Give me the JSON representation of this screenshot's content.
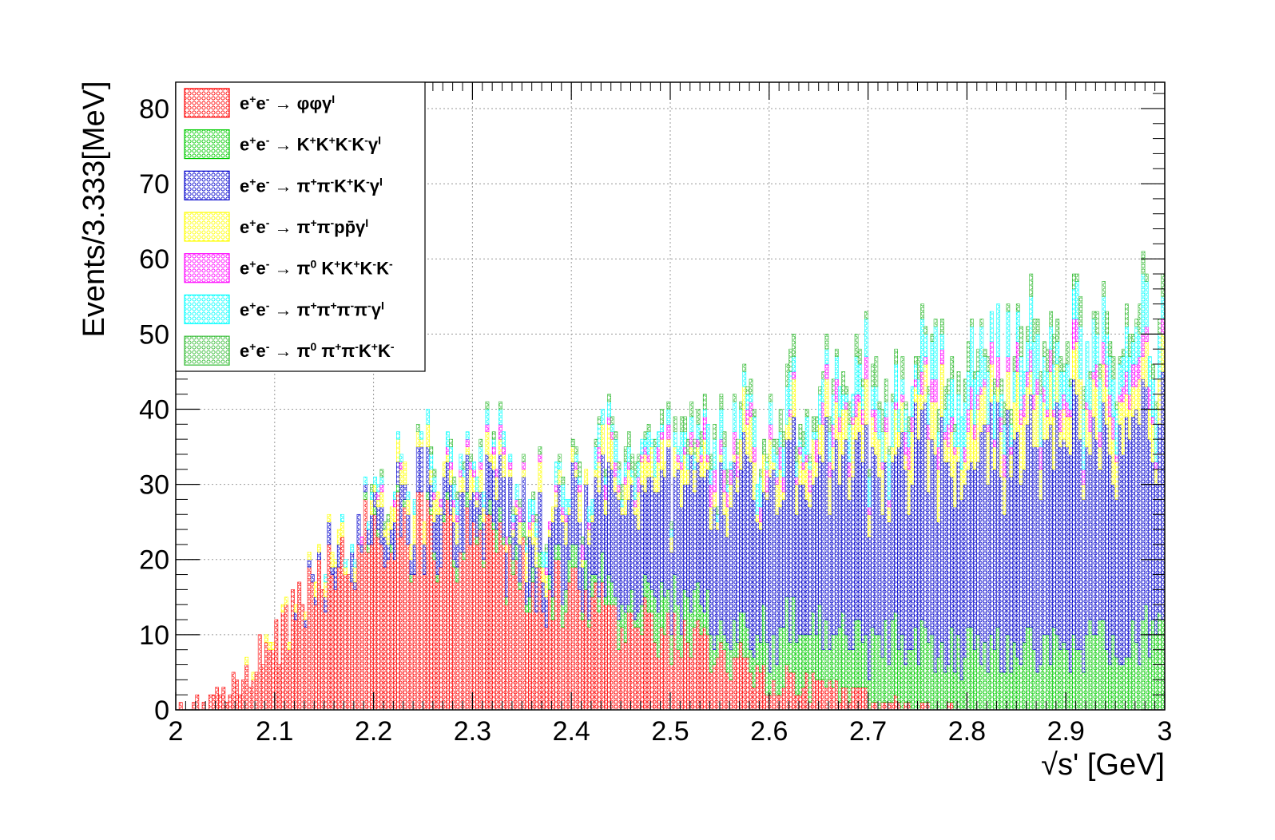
{
  "chart_data": {
    "type": "histogram",
    "stacked": true,
    "xlabel": "√s' [GeV]",
    "ylabel": "Events/3.333[MeV]",
    "xlim": [
      2,
      3
    ],
    "ylim": [
      0,
      83.5
    ],
    "xticks": [
      "2",
      "2.1",
      "2.2",
      "2.3",
      "2.4",
      "2.5",
      "2.6",
      "2.7",
      "2.8",
      "2.9",
      "3"
    ],
    "yticks": [
      "0",
      "10",
      "20",
      "30",
      "40",
      "50",
      "60",
      "70",
      "80"
    ],
    "grid": true,
    "legend_position": "top-left",
    "bin_width_gev": 0.003333,
    "curve_x": [
      2.0,
      2.05,
      2.1,
      2.15,
      2.2,
      2.25,
      2.3,
      2.35,
      2.4,
      2.45,
      2.5,
      2.55,
      2.6,
      2.65,
      2.7,
      2.75,
      2.8,
      2.85,
      2.9,
      2.95,
      3.0
    ],
    "series": [
      {
        "name": "e+e- → φφγ^I",
        "label_parts": [
          [
            "e",
            ""
          ],
          [
            "+",
            "sup"
          ],
          [
            "e",
            ""
          ],
          [
            "-",
            "sup"
          ],
          [
            " → φφγ",
            ""
          ],
          [
            "I",
            "sup"
          ]
        ],
        "color": "#ff0000",
        "profile": [
          0,
          2,
          9,
          19,
          23,
          24,
          22,
          18,
          15,
          12,
          10,
          7,
          4,
          3,
          2,
          0.5,
          0,
          0,
          0,
          0,
          0
        ]
      },
      {
        "name": "e+e- → K+K+K-K-γ^I",
        "label_parts": [
          [
            "e",
            ""
          ],
          [
            "+",
            "sup"
          ],
          [
            "e",
            ""
          ],
          [
            "-",
            "sup"
          ],
          [
            " → K",
            ""
          ],
          [
            "+",
            "sup"
          ],
          [
            "K",
            ""
          ],
          [
            "+",
            "sup"
          ],
          [
            "K",
            ""
          ],
          [
            "-",
            "sup"
          ],
          [
            "K",
            ""
          ],
          [
            "-",
            "sup"
          ],
          [
            "γ",
            ""
          ],
          [
            "I",
            "sup"
          ]
        ],
        "color": "#00cc00",
        "profile": [
          0,
          0,
          0,
          0,
          0.3,
          0.5,
          1,
          1.5,
          2,
          3,
          4,
          5,
          6,
          7,
          8,
          8,
          8,
          8,
          8,
          9,
          10
        ]
      },
      {
        "name": "e+e- → π+π-K+K-γ^I",
        "label_parts": [
          [
            "e",
            ""
          ],
          [
            "+",
            "sup"
          ],
          [
            "e",
            ""
          ],
          [
            "-",
            "sup"
          ],
          [
            " → π",
            ""
          ],
          [
            "+",
            "sup"
          ],
          [
            "π",
            ""
          ],
          [
            "-",
            "sup"
          ],
          [
            "K",
            ""
          ],
          [
            "+",
            "sup"
          ],
          [
            "K",
            ""
          ],
          [
            "-",
            "sup"
          ],
          [
            "γ",
            ""
          ],
          [
            "I",
            "sup"
          ]
        ],
        "color": "#0000cc",
        "profile": [
          0,
          0,
          0,
          1,
          3,
          5,
          5,
          6,
          8,
          12,
          15,
          19,
          21,
          22,
          23,
          24,
          25,
          26,
          27,
          27,
          27
        ]
      },
      {
        "name": "e+e- → π+π-pp̄γ^I",
        "label_parts": [
          [
            "e",
            ""
          ],
          [
            "+",
            "sup"
          ],
          [
            "e",
            ""
          ],
          [
            "-",
            "sup"
          ],
          [
            " → π",
            ""
          ],
          [
            "+",
            "sup"
          ],
          [
            "π",
            ""
          ],
          [
            "-",
            "sup"
          ],
          [
            "pp̄γ",
            ""
          ],
          [
            "I",
            "sup"
          ]
        ],
        "color": "#ffff00",
        "profile": [
          0,
          0,
          0.5,
          1,
          1.5,
          2,
          2,
          2.5,
          2.5,
          3,
          3,
          3.5,
          3.5,
          4,
          4,
          4.5,
          4.5,
          5,
          5,
          5,
          5
        ]
      },
      {
        "name": "e+e- → π0 K+K+K-K-",
        "label_parts": [
          [
            "e",
            ""
          ],
          [
            "+",
            "sup"
          ],
          [
            "e",
            ""
          ],
          [
            "-",
            "sup"
          ],
          [
            " → π",
            ""
          ],
          [
            "0",
            "sup"
          ],
          [
            " K",
            ""
          ],
          [
            "+",
            "sup"
          ],
          [
            "K",
            ""
          ],
          [
            "+",
            "sup"
          ],
          [
            "K",
            ""
          ],
          [
            "-",
            "sup"
          ],
          [
            "K",
            ""
          ],
          [
            "-",
            "sup"
          ]
        ],
        "color": "#ff00ff",
        "profile": [
          0,
          0,
          0,
          0,
          0.2,
          0.3,
          0.5,
          0.8,
          1,
          1,
          1.2,
          1.5,
          1.5,
          1.5,
          1.8,
          2,
          2,
          2,
          2,
          2,
          2
        ]
      },
      {
        "name": "e+e- → π+π+π-π-γ^I",
        "label_parts": [
          [
            "e",
            ""
          ],
          [
            "+",
            "sup"
          ],
          [
            "e",
            ""
          ],
          [
            "-",
            "sup"
          ],
          [
            " →  π",
            ""
          ],
          [
            "+",
            "sup"
          ],
          [
            "π",
            ""
          ],
          [
            "+",
            "sup"
          ],
          [
            "π",
            ""
          ],
          [
            "-",
            "sup"
          ],
          [
            "π",
            ""
          ],
          [
            "-",
            "sup"
          ],
          [
            "γ",
            ""
          ],
          [
            "I",
            "sup"
          ]
        ],
        "color": "#00ffff",
        "profile": [
          0,
          0,
          0,
          0.2,
          0.5,
          0.8,
          1,
          1.3,
          1.5,
          1.8,
          2,
          2.3,
          2.5,
          3,
          3.5,
          4,
          5,
          5.5,
          6,
          6,
          6
        ]
      },
      {
        "name": "e+e- → π0 π+π-K+K-",
        "label_parts": [
          [
            "e",
            ""
          ],
          [
            "+",
            "sup"
          ],
          [
            "e",
            ""
          ],
          [
            "-",
            "sup"
          ],
          [
            " → π",
            ""
          ],
          [
            "0",
            "sup"
          ],
          [
            " π",
            ""
          ],
          [
            "+",
            "sup"
          ],
          [
            "π",
            ""
          ],
          [
            "-",
            "sup"
          ],
          [
            "K",
            ""
          ],
          [
            "+",
            "sup"
          ],
          [
            "K",
            ""
          ],
          [
            "-",
            "sup"
          ]
        ],
        "color": "#33bb33",
        "profile": [
          0,
          0,
          0,
          0,
          0.2,
          0.3,
          0.5,
          0.5,
          0.8,
          1,
          1,
          1.2,
          1.5,
          1.5,
          1.8,
          2,
          2,
          2,
          2,
          2,
          2
        ]
      }
    ]
  }
}
